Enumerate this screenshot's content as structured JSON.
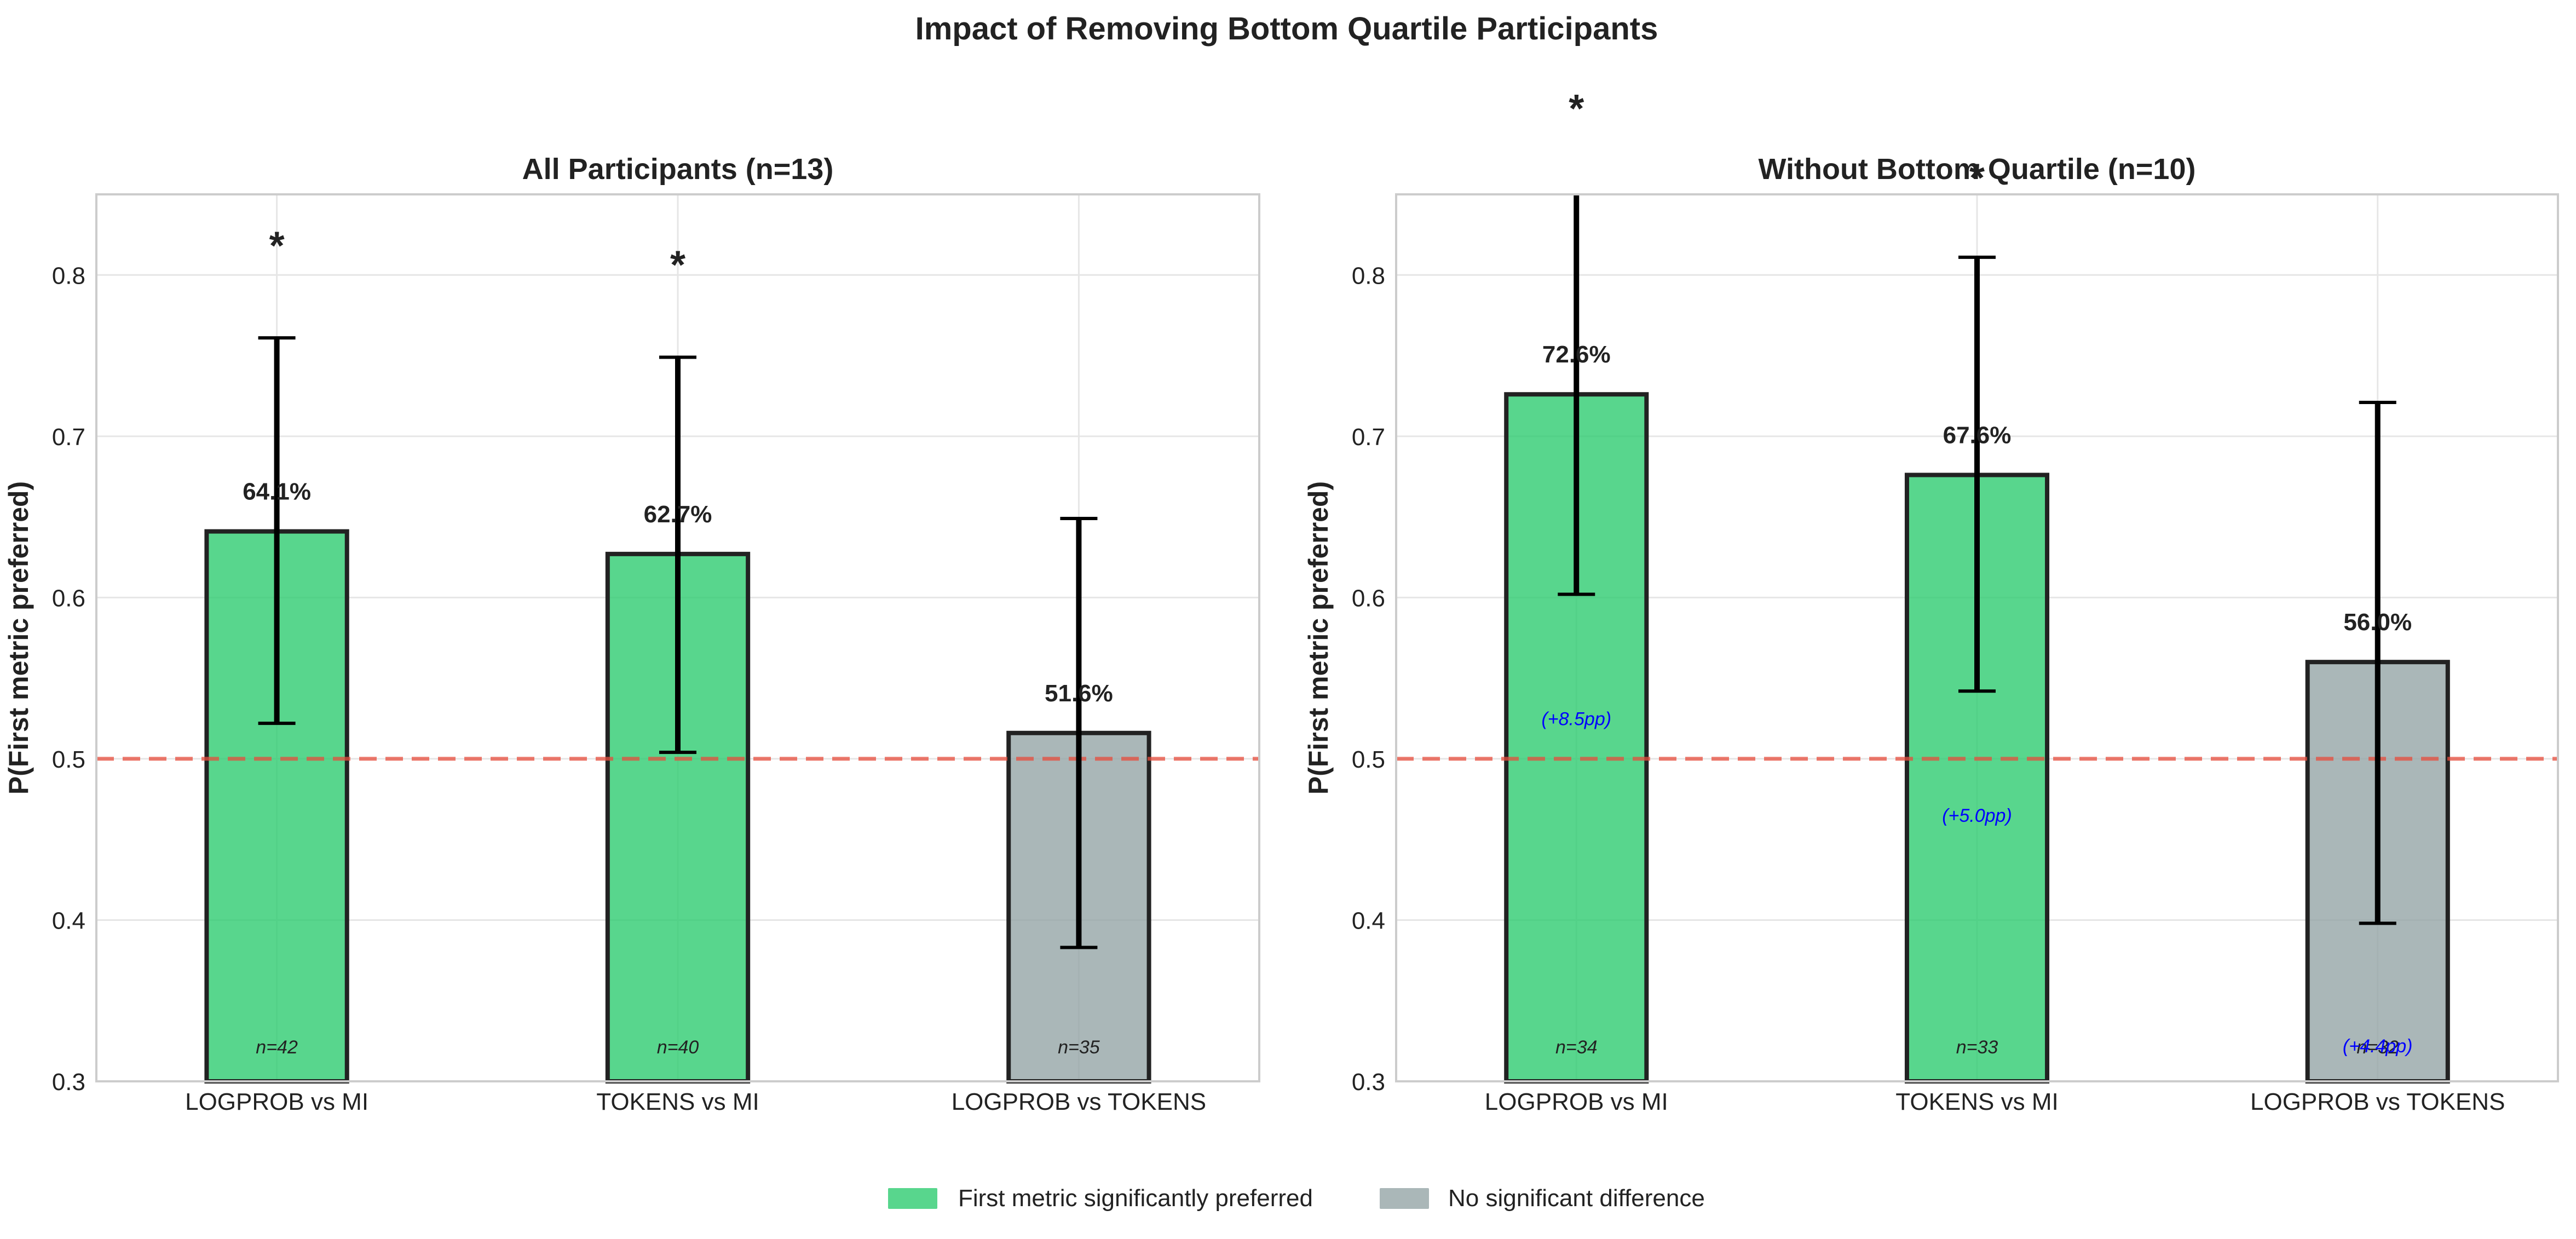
{
  "title": "Impact of Removing Bottom Quartile Participants",
  "colors": {
    "significant": "#2ecc71",
    "not_significant": "#95a5a6",
    "reference_line": "#e74c3c",
    "delta_text": "#0000ff"
  },
  "legend": {
    "placement": "bottom-center",
    "items": [
      {
        "label": "First metric significantly preferred",
        "color": "#2ecc71"
      },
      {
        "label": "No significant difference",
        "color": "#95a5a6"
      }
    ]
  },
  "chart_data": [
    {
      "type": "bar",
      "title": "All Participants (n=13)",
      "ylabel": "P(First metric preferred)",
      "ylim": [
        0.3,
        0.85
      ],
      "yticks": [
        "0.3",
        "0.4",
        "0.5",
        "0.6",
        "0.7",
        "0.8"
      ],
      "grid": true,
      "reference_line": 0.5,
      "categories": [
        "LOGPROB vs MI",
        "TOKENS vs MI",
        "LOGPROB vs TOKENS"
      ],
      "values": [
        0.641,
        0.627,
        0.516
      ],
      "value_labels": [
        "64.1%",
        "62.7%",
        "51.6%"
      ],
      "ci_low": [
        0.522,
        0.504,
        0.383
      ],
      "ci_high": [
        0.761,
        0.749,
        0.649
      ],
      "significant": [
        true,
        true,
        false
      ],
      "stars": [
        "*",
        "*",
        ""
      ],
      "star_y": [
        0.82,
        0.808,
        null
      ],
      "n_labels": [
        "n=42",
        "n=40",
        "n=35"
      ],
      "delta_labels": []
    },
    {
      "type": "bar",
      "title": "Without Bottom Quartile (n=10)",
      "ylabel": "P(First metric preferred)",
      "ylim": [
        0.3,
        0.85
      ],
      "yticks": [
        "0.3",
        "0.4",
        "0.5",
        "0.6",
        "0.7",
        "0.8"
      ],
      "grid": true,
      "reference_line": 0.5,
      "categories": [
        "LOGPROB vs MI",
        "TOKENS vs MI",
        "LOGPROB vs TOKENS"
      ],
      "values": [
        0.726,
        0.676,
        0.56
      ],
      "value_labels": [
        "72.6%",
        "67.6%",
        "56.0%"
      ],
      "ci_low": [
        0.602,
        0.542,
        0.398
      ],
      "ci_high": [
        0.92,
        0.811,
        0.721
      ],
      "significant": [
        true,
        true,
        false
      ],
      "stars": [
        "*",
        "*",
        ""
      ],
      "star_y": [
        0.905,
        0.862,
        null
      ],
      "n_labels": [
        "n=34",
        "n=33",
        "n=32"
      ],
      "delta_labels": [
        "(+8.5pp)",
        "(+5.0pp)",
        "(+4.4pp)"
      ],
      "delta_y": [
        0.525,
        0.465,
        0.322
      ]
    }
  ]
}
